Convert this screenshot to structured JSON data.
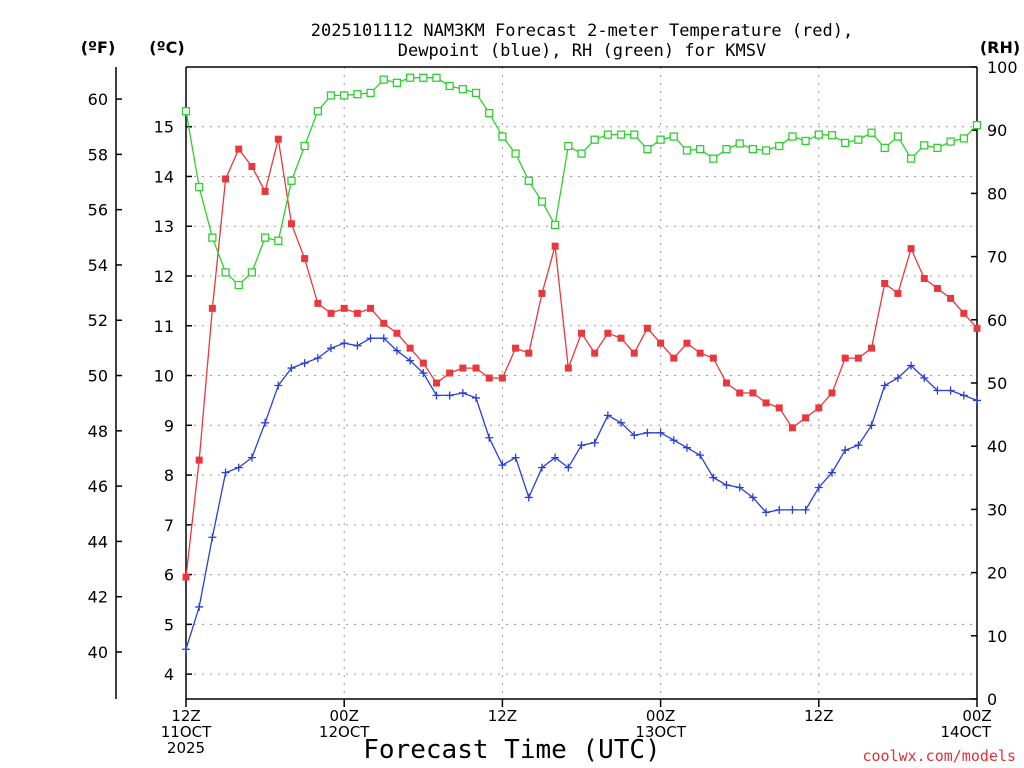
{
  "chart_data": {
    "type": "line",
    "title_lines": [
      "2025101112 NAM3KM Forecast 2-meter Temperature (red),",
      "Dewpoint (blue), RH (green) for KMSV"
    ],
    "xlabel": "Forecast Time (UTC)",
    "credit": "coolwx.com/models",
    "units": {
      "fahrenheit": "(ºF)",
      "celsius": "(ºC)",
      "rh": "(RH)"
    },
    "x_range": [
      0,
      60
    ],
    "x_ticks": [
      {
        "x": 0,
        "lines": [
          "12Z",
          "11OCT",
          "2025"
        ]
      },
      {
        "x": 12,
        "lines": [
          "00Z",
          "12OCT"
        ]
      },
      {
        "x": 24,
        "lines": [
          "12Z"
        ]
      },
      {
        "x": 36,
        "lines": [
          "00Z",
          "13OCT"
        ]
      },
      {
        "x": 48,
        "lines": [
          "12Z"
        ]
      },
      {
        "x": 60,
        "lines": [
          "00Z",
          "14OCT"
        ]
      }
    ],
    "celsius_axis": {
      "range": [
        3.5,
        16.2
      ],
      "ticks": [
        4,
        5,
        6,
        7,
        8,
        9,
        10,
        11,
        12,
        13,
        14,
        15
      ]
    },
    "fahrenheit_axis": {
      "range": [
        38.3,
        61.16
      ],
      "ticks": [
        40,
        42,
        44,
        46,
        48,
        50,
        52,
        54,
        56,
        58,
        60
      ]
    },
    "rh_axis": {
      "range": [
        0,
        100
      ],
      "ticks": [
        0,
        10,
        20,
        30,
        40,
        50,
        60,
        70,
        80,
        90,
        100
      ]
    },
    "grid": true,
    "series": [
      {
        "name": "2-meter Temperature",
        "color": "#e8383d",
        "marker": "filled-square",
        "axis": "celsius",
        "x": [
          0,
          1,
          2,
          3,
          4,
          5,
          6,
          7,
          8,
          9,
          10,
          11,
          12,
          13,
          14,
          15,
          16,
          17,
          18,
          19,
          20,
          21,
          22,
          23,
          24,
          25,
          26,
          27,
          28,
          29,
          30,
          31,
          32,
          33,
          34,
          35,
          36,
          37,
          38,
          39,
          40,
          41,
          42,
          43,
          44,
          45,
          46,
          47,
          48,
          49,
          50,
          51,
          52,
          53,
          54,
          55,
          56,
          57,
          58,
          59,
          60
        ],
        "values": [
          5.95,
          8.3,
          11.35,
          13.95,
          14.55,
          14.2,
          13.7,
          14.75,
          13.05,
          12.35,
          11.45,
          11.25,
          11.35,
          11.25,
          11.35,
          11.05,
          10.85,
          10.55,
          10.25,
          9.85,
          10.05,
          10.15,
          10.15,
          9.95,
          9.95,
          10.55,
          10.45,
          11.65,
          12.6,
          10.15,
          10.85,
          10.45,
          10.85,
          10.75,
          10.45,
          10.95,
          10.65,
          10.35,
          10.65,
          10.45,
          10.35,
          9.85,
          9.65,
          9.65,
          9.45,
          9.35,
          8.95,
          9.15,
          9.35,
          9.65,
          10.35,
          10.35,
          10.55,
          11.85,
          11.65,
          12.55,
          11.95,
          11.75,
          11.55,
          11.25,
          10.95
        ]
      },
      {
        "name": "Dewpoint",
        "color": "#2a3fd6",
        "marker": "plus",
        "axis": "celsius",
        "x": [
          0,
          1,
          2,
          3,
          4,
          5,
          6,
          7,
          8,
          9,
          10,
          11,
          12,
          13,
          14,
          15,
          16,
          17,
          18,
          19,
          20,
          21,
          22,
          23,
          24,
          25,
          26,
          27,
          28,
          29,
          30,
          31,
          32,
          33,
          34,
          35,
          36,
          37,
          38,
          39,
          40,
          41,
          42,
          43,
          44,
          45,
          46,
          47,
          48,
          49,
          50,
          51,
          52,
          53,
          54,
          55,
          56,
          57,
          58,
          59,
          60
        ],
        "values": [
          4.5,
          5.35,
          6.75,
          8.05,
          8.15,
          8.35,
          9.05,
          9.8,
          10.15,
          10.25,
          10.35,
          10.55,
          10.65,
          10.6,
          10.75,
          10.75,
          10.5,
          10.3,
          10.05,
          9.6,
          9.6,
          9.65,
          9.55,
          8.75,
          8.2,
          8.35,
          7.55,
          8.15,
          8.35,
          8.15,
          8.6,
          8.65,
          9.2,
          9.05,
          8.8,
          8.85,
          8.85,
          8.7,
          8.55,
          8.4,
          7.95,
          7.8,
          7.75,
          7.55,
          7.25,
          7.3,
          7.3,
          7.3,
          7.75,
          8.05,
          8.5,
          8.6,
          9.0,
          9.8,
          9.95,
          10.2,
          9.95,
          9.7,
          9.7,
          9.6,
          9.5
        ]
      },
      {
        "name": "RH",
        "color": "#2fcf2f",
        "marker": "open-square",
        "axis": "rh",
        "x": [
          0,
          1,
          2,
          3,
          4,
          5,
          6,
          7,
          8,
          9,
          10,
          11,
          12,
          13,
          14,
          15,
          16,
          17,
          18,
          19,
          20,
          21,
          22,
          23,
          24,
          25,
          26,
          27,
          28,
          29,
          30,
          31,
          32,
          33,
          34,
          35,
          36,
          37,
          38,
          39,
          40,
          41,
          42,
          43,
          44,
          45,
          46,
          47,
          48,
          49,
          50,
          51,
          52,
          53,
          54,
          55,
          56,
          57,
          58,
          59,
          60
        ],
        "values": [
          93,
          81,
          73,
          67.5,
          65.5,
          67.5,
          73,
          72.5,
          82,
          87.5,
          93,
          95.5,
          95.5,
          95.7,
          95.9,
          98,
          97.5,
          98.3,
          98.3,
          98.3,
          97,
          96.5,
          95.9,
          92.7,
          89,
          86.3,
          82,
          78.7,
          75,
          87.5,
          86.3,
          88.5,
          89.3,
          89.3,
          89.3,
          87,
          88.5,
          89,
          86.8,
          87,
          85.5,
          87,
          87.9,
          87,
          86.8,
          87.5,
          89,
          88.3,
          89.3,
          89.2,
          88,
          88.5,
          89.6,
          87.2,
          89,
          85.5,
          87.6,
          87.2,
          88.2,
          88.7,
          90.8
        ]
      }
    ]
  }
}
